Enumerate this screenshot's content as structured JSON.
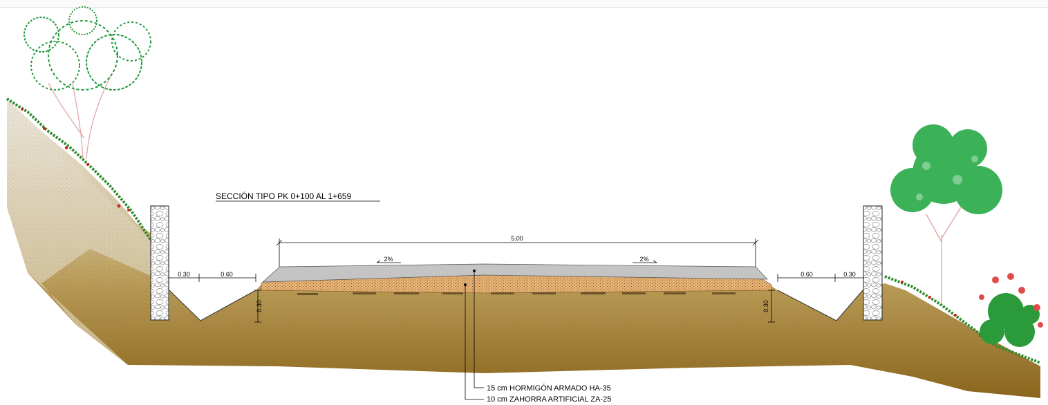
{
  "drawing": {
    "title": "SECCIÓN TIPO PK 0+100 AL 1+659",
    "dimensions": {
      "road_width": "5.00",
      "left_wall_gap": "0.30",
      "left_ditch_width": "0.60",
      "right_ditch_width": "0.60",
      "right_wall_gap": "0.30",
      "left_ditch_depth": "0.30",
      "right_ditch_depth": "0.30"
    },
    "slopes": {
      "left": "2%",
      "right": "2%"
    },
    "layers": [
      {
        "label": "15 cm HORMIGÓN ARMADO HA-35",
        "color": "#c6c6c6"
      },
      {
        "label": "10 cm ZAHORRA ARTIFICIAL ZA-25",
        "color": "#d79a55"
      }
    ],
    "colors": {
      "soil_top": "#d8c7a0",
      "soil_bottom": "#8d6a20",
      "slope_texture": "#e4ddd0",
      "concrete": "#c4c4c4",
      "gravel": "#d89a57",
      "grass": "#2f8f2f",
      "flower": "#d62020",
      "tree_foliage": "#1aa53c"
    }
  }
}
